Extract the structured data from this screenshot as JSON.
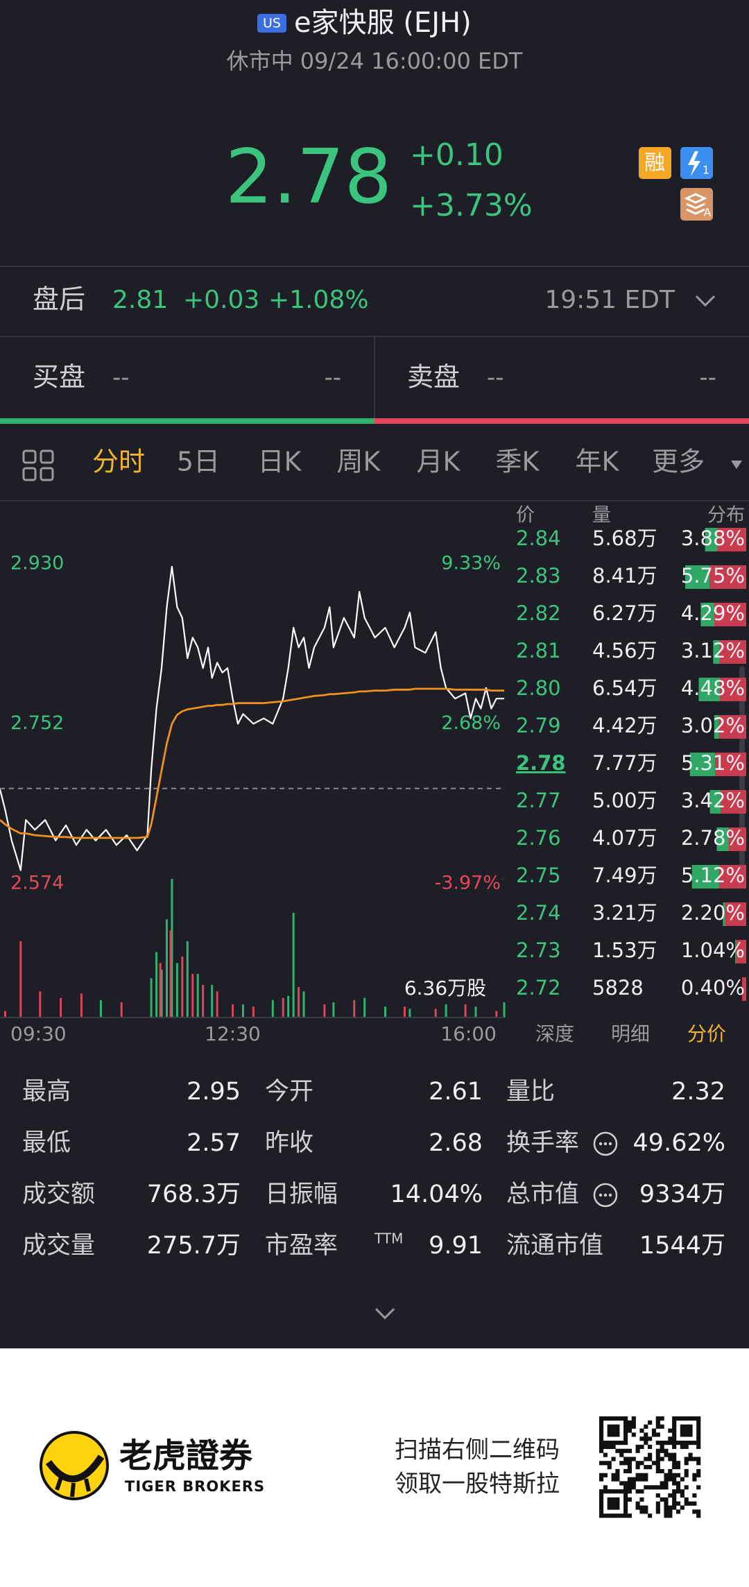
{
  "header": {
    "badge": "US",
    "title": "e家快服 (EJH)",
    "status": "休市中 09/24 16:00:00 EDT"
  },
  "quote": {
    "price": "2.78",
    "change": "+0.10",
    "change_pct": "+3.73%",
    "icons": {
      "margin": "融",
      "fast_sub": "1",
      "level_sub": "A"
    }
  },
  "after_hours": {
    "label": "盘后",
    "price": "2.81",
    "change": "+0.03",
    "change_pct": "+1.08%",
    "time": "19:51 EDT"
  },
  "bid_ask": {
    "bid_label": "买盘",
    "bid_price": "--",
    "bid_size": "--",
    "ask_label": "卖盘",
    "ask_price": "--",
    "ask_size": "--"
  },
  "tabs": {
    "items": [
      "分时",
      "5日",
      "日K",
      "周K",
      "月K",
      "季K",
      "年K",
      "更多"
    ],
    "active": 0
  },
  "chart_data": {
    "type": "line",
    "x": [
      0,
      4,
      9,
      16,
      20,
      27,
      35,
      43,
      51,
      59,
      67,
      74,
      82,
      90,
      98,
      106,
      114,
      117,
      121,
      125,
      129,
      133,
      137,
      141,
      145,
      149,
      153,
      157,
      161,
      164,
      168,
      172,
      176,
      180,
      184,
      188,
      196,
      204,
      211,
      219,
      223,
      227,
      231,
      235,
      239,
      243,
      251,
      255,
      258,
      266,
      274,
      278,
      282,
      290,
      298,
      305,
      313,
      317,
      321,
      329,
      337,
      341,
      345,
      352,
      360,
      364,
      368,
      372,
      376,
      380,
      384,
      390
    ],
    "xlim": [
      0,
      390
    ],
    "xticks": [
      {
        "value": 0,
        "label": "09:30"
      },
      {
        "value": 180,
        "label": "12:30"
      },
      {
        "value": 390,
        "label": "16:00"
      }
    ],
    "ylim": [
      2.574,
      2.93
    ],
    "yticks": [
      {
        "value": 2.93,
        "label": "2.930"
      },
      {
        "value": 2.752,
        "label": "2.752"
      },
      {
        "value": 2.574,
        "label": "2.574"
      }
    ],
    "y2lim": [
      -3.97,
      9.33
    ],
    "y2ticks": [
      {
        "value": 9.33,
        "label": "9.33%"
      },
      {
        "value": 2.68,
        "label": "2.68%"
      },
      {
        "value": -3.97,
        "label": "-3.97%"
      }
    ],
    "prev_close": 2.68,
    "series": [
      {
        "color": "#ffffff",
        "values": [
          2.679,
          2.656,
          2.622,
          2.589,
          2.645,
          2.634,
          2.645,
          2.622,
          2.639,
          2.617,
          2.634,
          2.622,
          2.634,
          2.617,
          2.628,
          2.611,
          2.628,
          2.701,
          2.769,
          2.814,
          2.882,
          2.927,
          2.882,
          2.87,
          2.825,
          2.848,
          2.837,
          2.814,
          2.837,
          2.803,
          2.82,
          2.809,
          2.814,
          2.78,
          2.752,
          2.763,
          2.752,
          2.758,
          2.752,
          2.78,
          2.814,
          2.859,
          2.837,
          2.848,
          2.814,
          2.837,
          2.859,
          2.882,
          2.837,
          2.87,
          2.848,
          2.899,
          2.87,
          2.848,
          2.859,
          2.837,
          2.859,
          2.876,
          2.837,
          2.831,
          2.854,
          2.814,
          2.792,
          2.78,
          2.786,
          2.758,
          2.78,
          2.769,
          2.792,
          2.769,
          2.78,
          2.78
        ]
      },
      {
        "color": "#f0901e",
        "values": [
          2.645,
          2.64,
          2.635,
          2.63,
          2.63,
          2.628,
          2.627,
          2.626,
          2.626,
          2.625,
          2.625,
          2.625,
          2.625,
          2.625,
          2.625,
          2.625,
          2.626,
          2.64,
          2.67,
          2.7,
          2.73,
          2.752,
          2.762,
          2.766,
          2.768,
          2.769,
          2.77,
          2.771,
          2.772,
          2.772,
          2.773,
          2.773,
          2.774,
          2.774,
          2.775,
          2.775,
          2.775,
          2.775,
          2.776,
          2.777,
          2.778,
          2.779,
          2.78,
          2.781,
          2.782,
          2.783,
          2.784,
          2.785,
          2.785,
          2.786,
          2.787,
          2.788,
          2.788,
          2.789,
          2.789,
          2.79,
          2.79,
          2.79,
          2.791,
          2.791,
          2.791,
          2.791,
          2.791,
          2.79,
          2.79,
          2.79,
          2.79,
          2.79,
          2.79,
          2.789,
          2.789,
          2.789
        ]
      }
    ],
    "volume": {
      "ylim": [
        0,
        63600
      ],
      "yticks": [
        {
          "value": 63600,
          "label": "6.36万股"
        }
      ],
      "series": [
        {
          "color": "#2fb36f",
          "x": [
            78,
            117,
            121,
            125,
            129,
            133,
            137,
            145,
            153,
            164,
            188,
            211,
            223,
            227,
            235,
            258,
            282,
            298,
            317,
            345,
            368,
            390
          ],
          "values": [
            8000,
            18000,
            30000,
            22000,
            45000,
            63600,
            25000,
            35000,
            20000,
            15000,
            6000,
            8000,
            10000,
            48000,
            12000,
            7000,
            9000,
            5000,
            4000,
            6000,
            5000,
            7000
          ]
        },
        {
          "color": "#d9455a",
          "x": [
            4,
            16,
            31,
            47,
            63,
            94,
            124,
            132,
            141,
            149,
            157,
            168,
            180,
            196,
            219,
            231,
            251,
            274,
            313,
            337,
            360,
            384
          ],
          "values": [
            3000,
            35000,
            12000,
            9000,
            11000,
            7000,
            25000,
            40000,
            28000,
            20000,
            15000,
            12000,
            6000,
            5000,
            9000,
            14000,
            6000,
            8000,
            5000,
            4000,
            6000,
            3000
          ]
        }
      ]
    }
  },
  "order_book": {
    "headers": [
      "价",
      "量",
      "分布"
    ],
    "current_row": 6,
    "rows": [
      {
        "price": "2.84",
        "volume": "5.68万",
        "share": 3.88,
        "share_label": "3.88%",
        "buy_share": 0.3
      },
      {
        "price": "2.83",
        "volume": "8.41万",
        "share": 5.75,
        "share_label": "5.75%",
        "buy_share": 0.4
      },
      {
        "price": "2.82",
        "volume": "6.27万",
        "share": 4.29,
        "share_label": "4.29%",
        "buy_share": 0.3
      },
      {
        "price": "2.81",
        "volume": "4.56万",
        "share": 3.12,
        "share_label": "3.12%",
        "buy_share": 0.2
      },
      {
        "price": "2.80",
        "volume": "6.54万",
        "share": 4.48,
        "share_label": "4.48%",
        "buy_share": 0.45
      },
      {
        "price": "2.79",
        "volume": "4.42万",
        "share": 3.02,
        "share_label": "3.02%",
        "buy_share": 0.15
      },
      {
        "price": "2.78",
        "volume": "7.77万",
        "share": 5.31,
        "share_label": "5.31%",
        "buy_share": 0.45
      },
      {
        "price": "2.77",
        "volume": "5.00万",
        "share": 3.42,
        "share_label": "3.42%",
        "buy_share": 0.3
      },
      {
        "price": "2.76",
        "volume": "4.07万",
        "share": 2.78,
        "share_label": "2.78%",
        "buy_share": 0.4
      },
      {
        "price": "2.75",
        "volume": "7.49万",
        "share": 5.12,
        "share_label": "5.12%",
        "buy_share": 0.5
      },
      {
        "price": "2.74",
        "volume": "3.21万",
        "share": 2.2,
        "share_label": "2.20%",
        "buy_share": 0.1
      },
      {
        "price": "2.73",
        "volume": "1.53万",
        "share": 1.04,
        "share_label": "1.04%",
        "buy_share": 0.1
      },
      {
        "price": "2.72",
        "volume": "5828",
        "share": 0.4,
        "share_label": "0.40%",
        "buy_share": 0
      }
    ]
  },
  "bottom_tabs": {
    "items": [
      "深度",
      "明细",
      "分价"
    ],
    "active": 2
  },
  "stats": {
    "rows": [
      [
        {
          "label": "最高",
          "value": "2.95"
        },
        {
          "label": "今开",
          "value": "2.61"
        },
        {
          "label": "量比",
          "value": "2.32"
        }
      ],
      [
        {
          "label": "最低",
          "value": "2.57"
        },
        {
          "label": "昨收",
          "value": "2.68"
        },
        {
          "label": "换手率",
          "value": "49.62%",
          "info": true
        }
      ],
      [
        {
          "label": "成交额",
          "value": "768.3万"
        },
        {
          "label": "日振幅",
          "value": "14.04%"
        },
        {
          "label": "总市值",
          "value": "9334万",
          "info": true
        }
      ],
      [
        {
          "label": "成交量",
          "value": "275.7万"
        },
        {
          "label": "市盈率",
          "sup": "TTM",
          "value": "9.91"
        },
        {
          "label": "流通市值",
          "value": "1544万"
        }
      ]
    ]
  },
  "footer": {
    "brand_cn": "老虎證券",
    "brand_en": "TIGER BROKERS",
    "line1": "扫描右侧二维码",
    "line2": "领取一股特斯拉"
  }
}
